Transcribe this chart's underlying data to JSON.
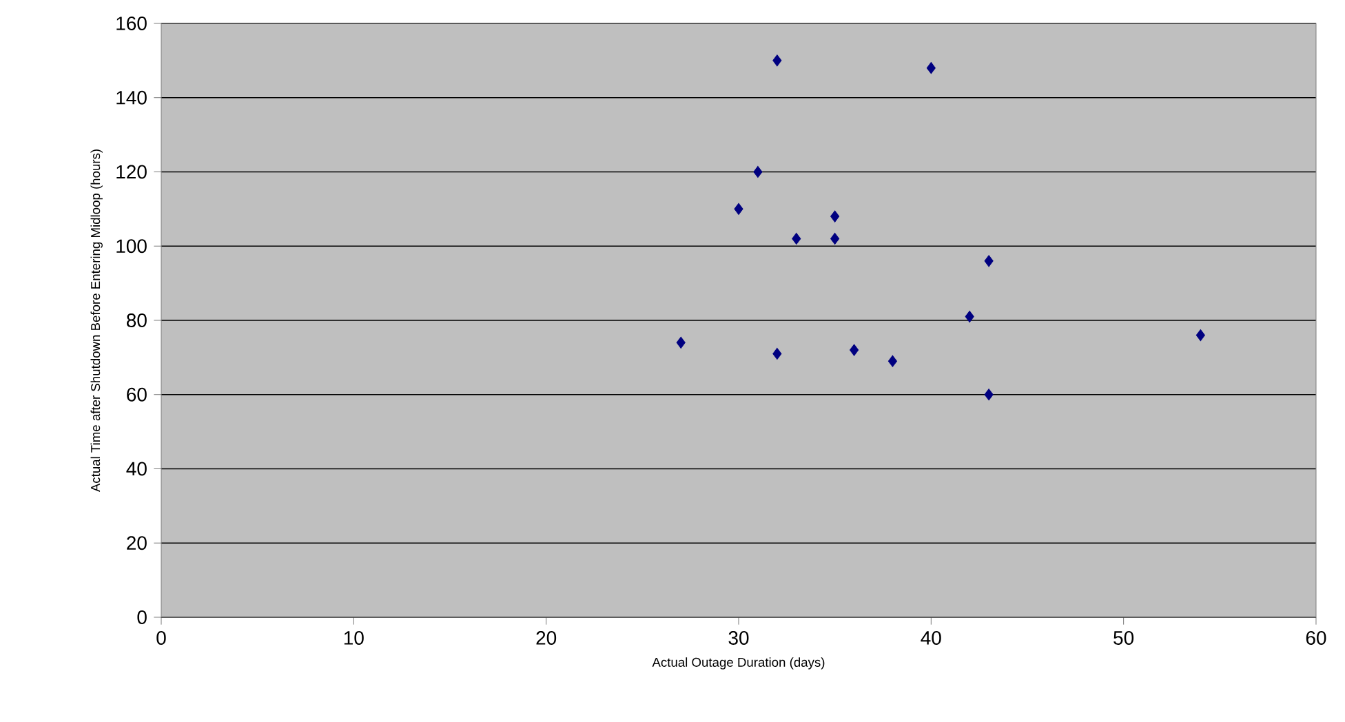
{
  "chart_data": {
    "type": "scatter",
    "xlabel": "Actual Outage Duration (days)",
    "ylabel": "Actual Time after Shutdown Before Entering Midloop (hours)",
    "x": [
      27,
      30,
      31,
      32,
      32,
      33,
      35,
      35,
      36,
      38,
      40,
      42,
      43,
      43,
      54
    ],
    "values": [
      74,
      110,
      120,
      150,
      71,
      102,
      108,
      102,
      72,
      69,
      148,
      81,
      96,
      60,
      76
    ],
    "color": "#000080",
    "marker": "diamond",
    "xlim": [
      0,
      60
    ],
    "xticks": [
      0,
      10,
      20,
      30,
      40,
      50,
      60
    ],
    "ylim": [
      0,
      160
    ],
    "yticks": [
      0,
      20,
      40,
      60,
      80,
      100,
      120,
      140,
      160
    ],
    "grid": "y"
  }
}
